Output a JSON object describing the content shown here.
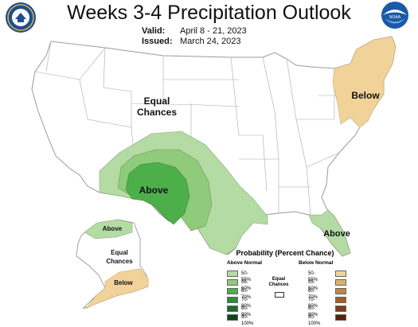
{
  "header": {
    "title": "Weeks 3-4 Precipitation Outlook",
    "valid_label": "Valid:",
    "valid_value": "April 8 - 21, 2023",
    "issued_label": "Issued:",
    "issued_value": "March 24, 2023"
  },
  "logos": {
    "left": "seal-icon",
    "right": "noaa-icon"
  },
  "map": {
    "labels": {
      "equal_chances_conus_1": "Equal",
      "equal_chances_conus_2": "Chances",
      "above_southwest": "Above",
      "below_northeast": "Below",
      "above_florida": "Above",
      "above_alaska": "Above",
      "equal_chances_alaska_1": "Equal",
      "equal_chances_alaska_2": "Chances",
      "below_alaska": "Below"
    },
    "colors": {
      "land": "#ffffff",
      "border": "#9a9a9a",
      "above_50_55": "#b5dba4",
      "above_55_60": "#8fcb7a",
      "above_60_70": "#4daf4a",
      "below_50_55": "#f1d39a"
    }
  },
  "legend": {
    "title": "Probability (Percent Chance)",
    "above_header": "Above Normal",
    "below_header": "Below Normal",
    "equal_1": "Equal",
    "equal_2": "Chances",
    "above": [
      {
        "label": "50-55%",
        "color": "#b5dba4"
      },
      {
        "label": "55-60%",
        "color": "#8fcb7a"
      },
      {
        "label": "60-70%",
        "color": "#4daf4a"
      },
      {
        "label": "70-80%",
        "color": "#2e8b3a"
      },
      {
        "label": "80-90%",
        "color": "#1c6b2a"
      },
      {
        "label": "90-100%",
        "color": "#0e4719"
      }
    ],
    "below": [
      {
        "label": "50-55%",
        "color": "#f1d39a"
      },
      {
        "label": "55-60%",
        "color": "#ddb071"
      },
      {
        "label": "60-70%",
        "color": "#c48447"
      },
      {
        "label": "70-80%",
        "color": "#a45e2a"
      },
      {
        "label": "80-90%",
        "color": "#7c3e16"
      },
      {
        "label": "90-100%",
        "color": "#55240b"
      }
    ]
  }
}
